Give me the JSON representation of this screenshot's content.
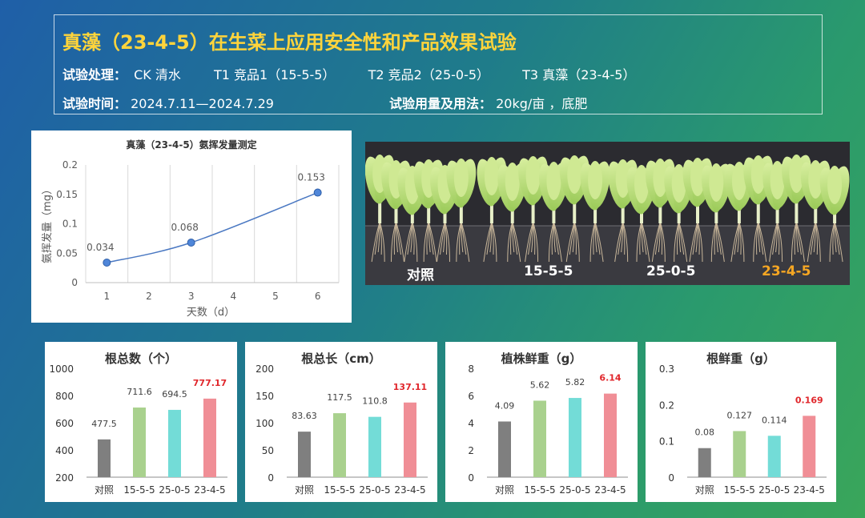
{
  "header": {
    "title": "真藻（23-4-5）在生菜上应用安全性和产品效果试验",
    "treatment_label": "试验处理：",
    "treatments": [
      "CK 清水",
      "T1 竞品1（15-5-5）",
      "T2 竞品2（25-0-5）",
      "T3 真藻（23-4-5）"
    ],
    "time_label": "试验时间：",
    "time_value": "2024.7.11—2024.7.29",
    "dosage_label": "试验用量及用法：",
    "dosage_value": "20kg/亩 ，底肥"
  },
  "photo": {
    "labels": [
      "对照",
      "15-5-5",
      "25-0-5",
      "23-4-5"
    ],
    "highlight_color": "#f5a623"
  },
  "colors": {
    "bar_ck": "#7f7f7f",
    "bar_t1": "#a9d18e",
    "bar_t2": "#73dcd7",
    "bar_t3": "#f08e96",
    "highlight_label": "#e0262b",
    "line": "#4a78c2"
  },
  "chart_data": [
    {
      "type": "line",
      "title": "真藻（23-4-5）氨挥发量测定",
      "xlabel": "天数（d）",
      "ylabel": "氨挥发量（mg）",
      "x_ticks": [
        1,
        2,
        3,
        4,
        5,
        6
      ],
      "y_ticks": [
        "0",
        "0.05",
        "0.1",
        "0.15",
        "0.2"
      ],
      "xlim": [
        0.5,
        6.5
      ],
      "ylim": [
        0,
        0.2
      ],
      "grid": "vertical",
      "points": [
        {
          "x": 1,
          "y": 0.034,
          "label": "0.034"
        },
        {
          "x": 3,
          "y": 0.068,
          "label": "0.068"
        },
        {
          "x": 6,
          "y": 0.153,
          "label": "0.153"
        }
      ]
    },
    {
      "type": "bar",
      "title": "根总数（个）",
      "categories": [
        "对照",
        "15-5-5",
        "25-0-5",
        "23-4-5"
      ],
      "values": [
        477.5,
        711.6,
        694.5,
        777.17
      ],
      "labels": [
        "477.5",
        "711.6",
        "694.5",
        "777.17"
      ],
      "y_ticks": [
        "200",
        "400",
        "600",
        "800",
        "1000"
      ],
      "ylim": [
        200,
        1000
      ]
    },
    {
      "type": "bar",
      "title": "根总长（cm）",
      "categories": [
        "对照",
        "15-5-5",
        "25-0-5",
        "23-4-5"
      ],
      "values": [
        83.63,
        117.5,
        110.8,
        137.11
      ],
      "labels": [
        "83.63",
        "117.5",
        "110.8",
        "137.11"
      ],
      "y_ticks": [
        "0",
        "50",
        "100",
        "150",
        "200"
      ],
      "ylim": [
        0,
        200
      ]
    },
    {
      "type": "bar",
      "title": "植株鲜重（g）",
      "categories": [
        "对照",
        "15-5-5",
        "25-0-5",
        "23-4-5"
      ],
      "values": [
        4.09,
        5.62,
        5.82,
        6.14
      ],
      "labels": [
        "4.09",
        "5.62",
        "5.82",
        "6.14"
      ],
      "y_ticks": [
        "0",
        "2",
        "4",
        "6",
        "8"
      ],
      "ylim": [
        0,
        8
      ]
    },
    {
      "type": "bar",
      "title": "根鲜重（g）",
      "categories": [
        "对照",
        "15-5-5",
        "25-0-5",
        "23-4-5"
      ],
      "values": [
        0.08,
        0.127,
        0.114,
        0.169
      ],
      "labels": [
        "0.08",
        "0.127",
        "0.114",
        "0.169"
      ],
      "y_ticks": [
        "0",
        "0.1",
        "0.2",
        "0.3"
      ],
      "ylim": [
        0,
        0.3
      ]
    }
  ]
}
